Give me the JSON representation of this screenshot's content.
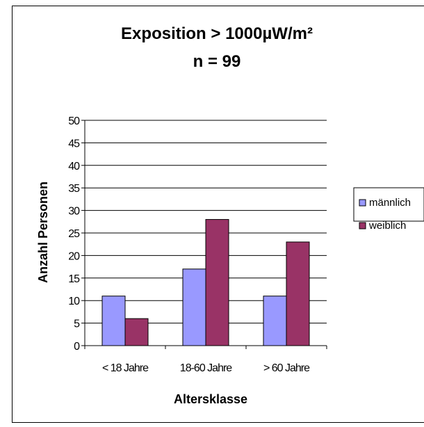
{
  "chart_data": {
    "type": "bar",
    "title": "Exposition > 1000µW/m²",
    "subtitle": "n = 99",
    "xlabel": "Altersklasse",
    "ylabel": "Anzahl Personen",
    "categories": [
      "< 18 Jahre",
      "18-60 Jahre",
      "> 60 Jahre"
    ],
    "series": [
      {
        "name": "männlich",
        "values": [
          11,
          17,
          11
        ],
        "color": "#9999FF"
      },
      {
        "name": "weiblich",
        "values": [
          6,
          28,
          23
        ],
        "color": "#993366"
      }
    ],
    "ylim": [
      0,
      50
    ],
    "yticks": [
      0,
      5,
      10,
      15,
      20,
      25,
      30,
      35,
      40,
      45,
      50
    ],
    "grid": true,
    "legend_position": "right"
  }
}
